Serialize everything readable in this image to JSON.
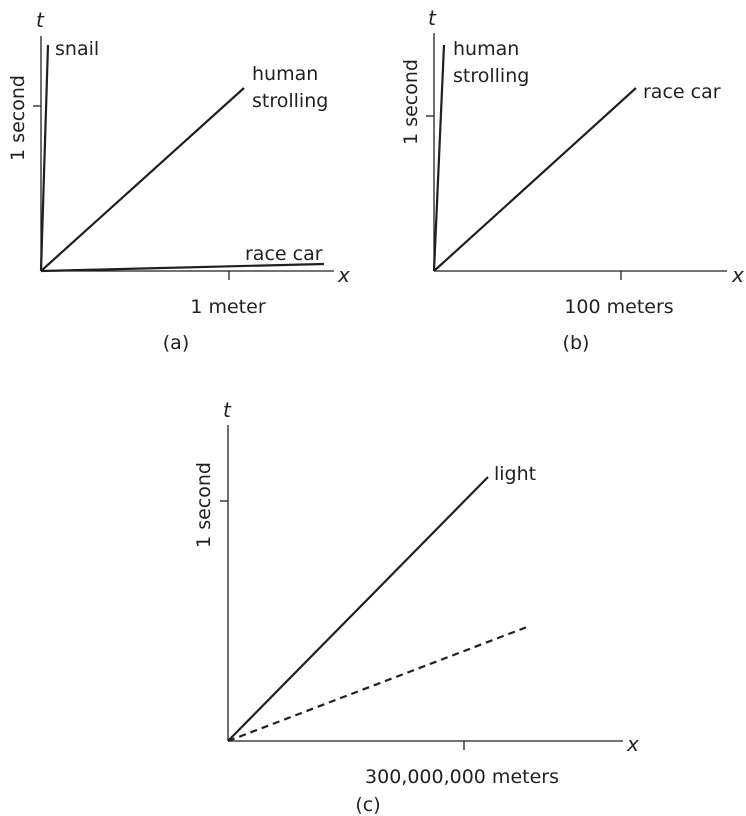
{
  "panels": [
    {
      "id": "a",
      "caption": "(a)",
      "t_axis": "t",
      "x_axis": "x",
      "t_unit": "1 second",
      "x_unit": "1 meter",
      "lines": [
        {
          "label": "snail",
          "style": "solid"
        },
        {
          "label": "human strolling",
          "style": "solid"
        },
        {
          "label": "race car",
          "style": "solid"
        }
      ]
    },
    {
      "id": "b",
      "caption": "(b)",
      "t_axis": "t",
      "x_axis": "x",
      "t_unit": "1 second",
      "x_unit": "100 meters",
      "lines": [
        {
          "label": "human strolling",
          "style": "solid"
        },
        {
          "label": "race car",
          "style": "solid"
        }
      ]
    },
    {
      "id": "c",
      "caption": "(c)",
      "t_axis": "t",
      "x_axis": "x",
      "t_unit": "1 second",
      "x_unit": "300,000,000 meters",
      "lines": [
        {
          "label": "light",
          "style": "solid"
        },
        {
          "label": "",
          "style": "dashed"
        }
      ]
    }
  ],
  "colors": {
    "ink": "#231f20",
    "background": "#ffffff"
  }
}
